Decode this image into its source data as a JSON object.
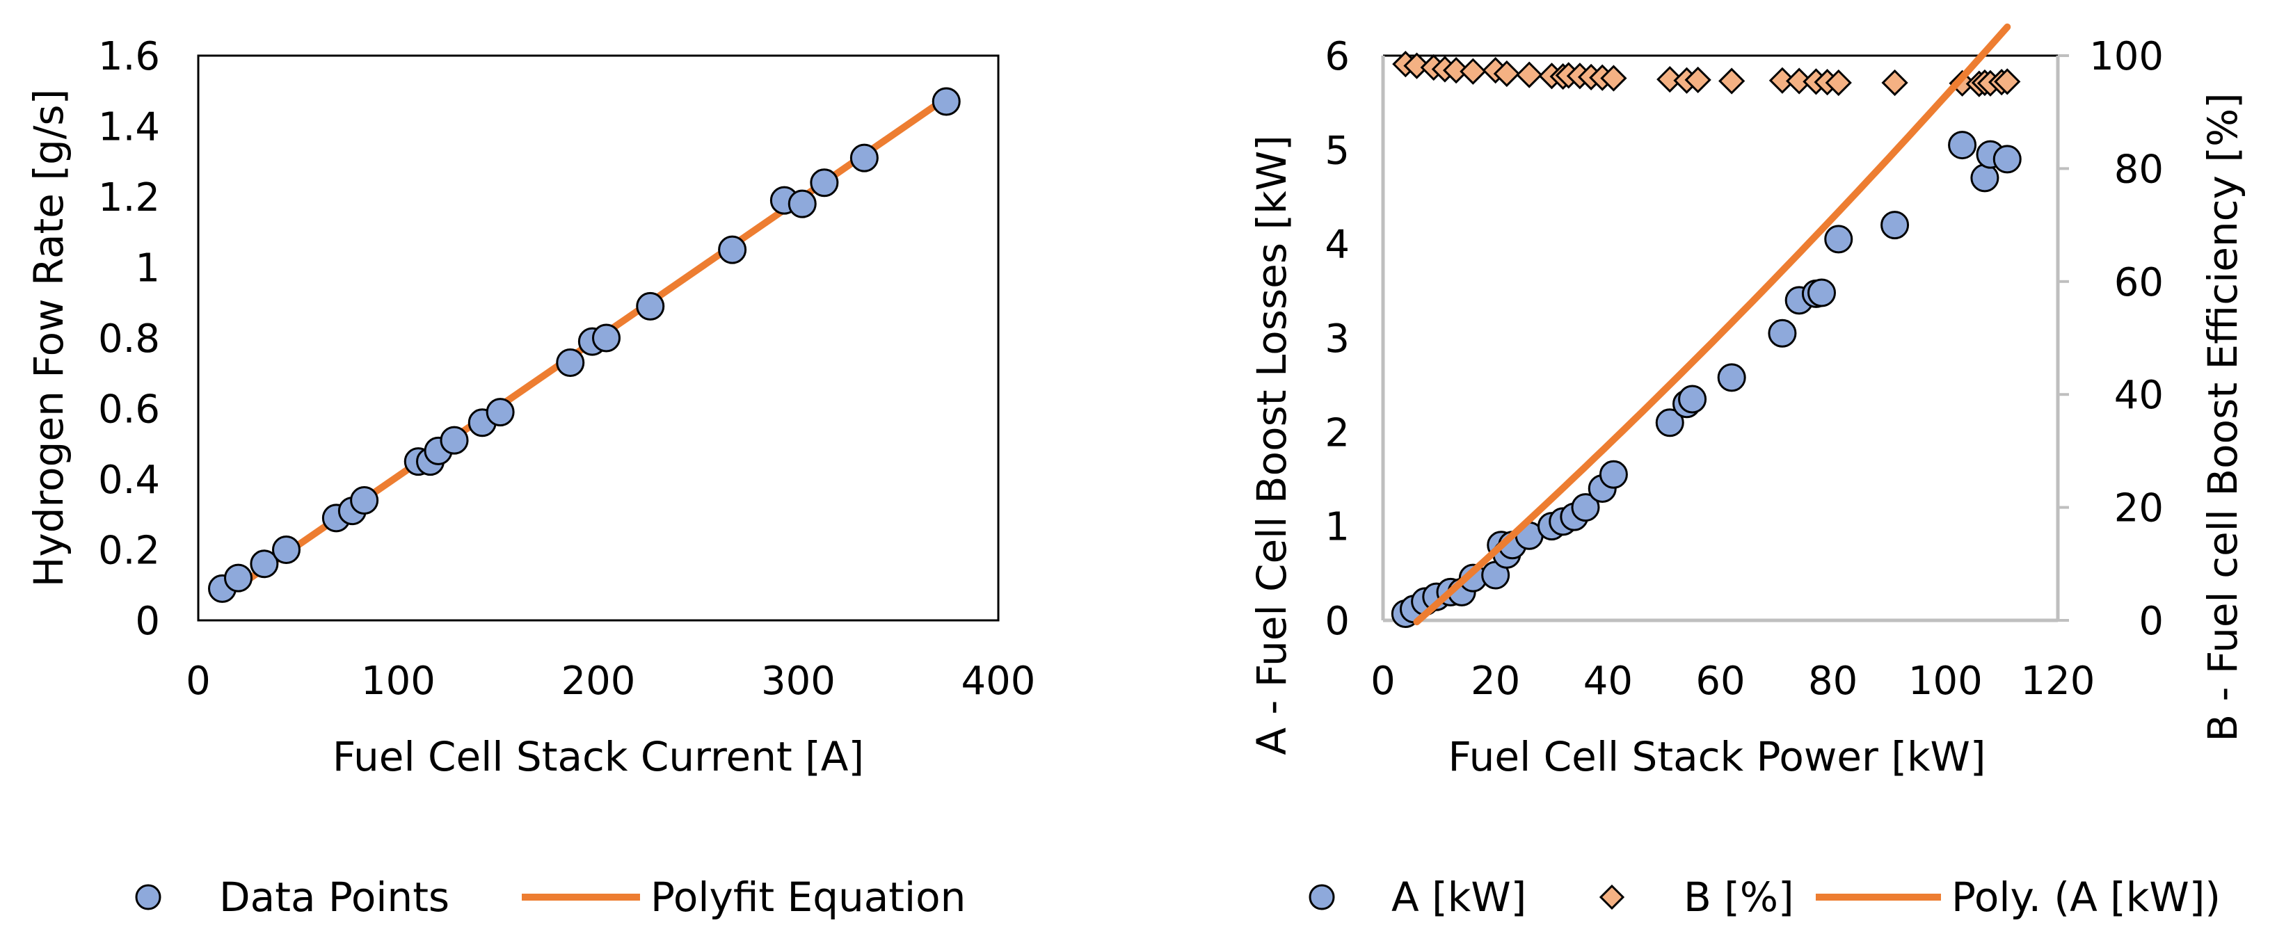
{
  "colors": {
    "points_fill": "#8EA9DB",
    "points_stroke": "#000000",
    "diamond_fill": "#F4B183",
    "fit_line": "#ED7D31",
    "axis_black": "#000000",
    "axis_gray": "#BFBFBF"
  },
  "chart_data": [
    {
      "type": "scatter",
      "title": "",
      "xlabel": "Fuel Cell Stack Current [A]",
      "ylabel": "Hydrogen Fow Rate [g/s]",
      "xlim": [
        0,
        400
      ],
      "ylim": [
        0,
        1.6
      ],
      "xticks": [
        "0",
        "100",
        "200",
        "300",
        "400"
      ],
      "yticks": [
        "0",
        "0.2",
        "0.4",
        "0.6",
        "0.8",
        "1",
        "1.2",
        "1.4",
        "1.6"
      ],
      "grid": false,
      "legend": {
        "placement": "bottom",
        "point_label": "Data Points",
        "line_label": "Polyfit Equation"
      },
      "series": [
        {
          "name": "Data Points",
          "kind": "points",
          "x": [
            12,
            20,
            33,
            44,
            69,
            77,
            83,
            110,
            116,
            120,
            128,
            142,
            151,
            186,
            197,
            204,
            226,
            267,
            293,
            302,
            313,
            333,
            374
          ],
          "y": [
            0.09,
            0.12,
            0.16,
            0.2,
            0.29,
            0.31,
            0.34,
            0.45,
            0.45,
            0.48,
            0.51,
            0.56,
            0.59,
            0.73,
            0.79,
            0.8,
            0.89,
            1.05,
            1.19,
            1.18,
            1.24,
            1.31,
            1.47
          ]
        },
        {
          "name": "Polyfit Equation",
          "kind": "line",
          "x": [
            12,
            374
          ],
          "y": [
            0.065,
            1.48
          ]
        }
      ]
    },
    {
      "type": "scatter",
      "title": "",
      "xlabel": "Fuel Cell Stack Power [kW]",
      "ylabel_left": "A - Fuel Cell Boost Losses [kW]",
      "ylabel_right": "B - Fuel cell Boost Efficiency [%]",
      "xlim": [
        0,
        120
      ],
      "ylim_left": [
        0,
        6
      ],
      "ylim_right": [
        0,
        100
      ],
      "xticks": [
        "0",
        "20",
        "40",
        "60",
        "80",
        "100",
        "120"
      ],
      "yticks_left": [
        "0",
        "1",
        "2",
        "3",
        "4",
        "5",
        "6"
      ],
      "yticks_right": [
        "0",
        "20",
        "40",
        "60",
        "80",
        "100"
      ],
      "grid": false,
      "legend": {
        "placement": "bottom",
        "a_label": "A [kW]",
        "b_label": "B [%]",
        "fit_label": "Poly. (A [kW])"
      },
      "series": [
        {
          "name": "A [kW]",
          "kind": "points",
          "axis": "left",
          "x": [
            4,
            5.5,
            7.5,
            9.5,
            12,
            14,
            16,
            20,
            21,
            22,
            23,
            26,
            30,
            32,
            34,
            36,
            39,
            41,
            51,
            54,
            55,
            62,
            71,
            74,
            77,
            78,
            81,
            91,
            103,
            107,
            108,
            111
          ],
          "y": [
            0.07,
            0.12,
            0.2,
            0.25,
            0.3,
            0.3,
            0.45,
            0.48,
            0.8,
            0.7,
            0.8,
            0.9,
            1.0,
            1.05,
            1.1,
            1.2,
            1.4,
            1.55,
            2.1,
            2.3,
            2.35,
            2.58,
            3.05,
            3.4,
            3.47,
            3.48,
            4.05,
            4.2,
            5.05,
            4.7,
            4.95,
            4.9
          ]
        },
        {
          "name": "B [%]",
          "kind": "diamonds",
          "axis": "right",
          "x": [
            4,
            6,
            9,
            11,
            13,
            16,
            20,
            22,
            26,
            30,
            32,
            33,
            35,
            37,
            39,
            41,
            51,
            54,
            56,
            62,
            71,
            74,
            77,
            79,
            81,
            91,
            103,
            106,
            107,
            108,
            110,
            111
          ],
          "y": [
            98.5,
            98.2,
            97.9,
            97.6,
            97.4,
            97.2,
            97.4,
            96.8,
            96.6,
            96.4,
            96.3,
            96.5,
            96.4,
            96.2,
            96.1,
            96.0,
            95.8,
            95.6,
            95.7,
            95.5,
            95.6,
            95.5,
            95.4,
            95.3,
            95.2,
            95.2,
            95.1,
            95.0,
            95.2,
            95.1,
            95.3,
            95.4
          ]
        },
        {
          "name": "Poly. (A [kW])",
          "kind": "poly",
          "axis": "left",
          "coeffs": [
            -0.33,
            0.052,
            7e-05
          ],
          "x_range": [
            6,
            111
          ]
        }
      ]
    }
  ]
}
